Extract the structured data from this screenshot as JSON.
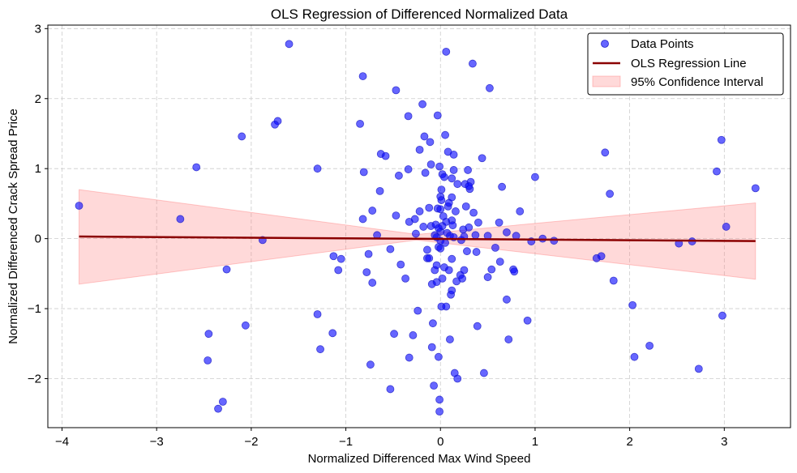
{
  "chart_data": {
    "type": "scatter",
    "title": "OLS Regression of Differenced Normalized Data",
    "xlabel": "Normalized Differenced Max Wind Speed",
    "ylabel": "Normalized Differenced Crack Spread Price",
    "xlim": [
      -4.15,
      3.7
    ],
    "ylim": [
      -2.7,
      3.05
    ],
    "xticks": [
      -4,
      -3,
      -2,
      -1,
      0,
      1,
      2,
      3
    ],
    "xtick_labels": [
      "−4",
      "−3",
      "−2",
      "−1",
      "0",
      "1",
      "2",
      "3"
    ],
    "yticks": [
      -2,
      -1,
      0,
      1,
      2,
      3
    ],
    "ytick_labels": [
      "−2",
      "−1",
      "0",
      "1",
      "2",
      "3"
    ],
    "grid": true,
    "legend_position": "top-right",
    "legend": [
      "Data Points",
      "OLS Regression Line",
      "95% Confidence Interval"
    ],
    "colors": {
      "points": "#0000ff",
      "points_edge": "#2020c8",
      "line": "#8b0000",
      "ci_fill": "#ff6666",
      "grid": "#cccccc"
    },
    "regression_line": {
      "x": [
        -3.82,
        3.33
      ],
      "y": [
        0.03,
        -0.035
      ]
    },
    "confidence_band": {
      "x": [
        -3.82,
        -0.25,
        3.33
      ],
      "lower": [
        -0.65,
        -0.02,
        -0.58
      ],
      "upper": [
        0.7,
        0.06,
        0.51
      ]
    },
    "points": [
      [
        -3.82,
        0.47
      ],
      [
        -2.75,
        0.28
      ],
      [
        -2.58,
        1.02
      ],
      [
        -2.45,
        -1.36
      ],
      [
        -2.46,
        -1.74
      ],
      [
        -2.35,
        -2.43
      ],
      [
        -2.3,
        -2.33
      ],
      [
        -2.26,
        -0.44
      ],
      [
        -2.1,
        1.46
      ],
      [
        -2.06,
        -1.24
      ],
      [
        -1.88,
        -0.02
      ],
      [
        -1.72,
        1.68
      ],
      [
        -1.75,
        1.63
      ],
      [
        -1.6,
        2.78
      ],
      [
        -1.3,
        1.0
      ],
      [
        -1.3,
        -1.08
      ],
      [
        -1.27,
        -1.58
      ],
      [
        -1.14,
        -1.35
      ],
      [
        -1.13,
        -0.25
      ],
      [
        -1.08,
        -0.45
      ],
      [
        -1.05,
        -0.29
      ],
      [
        -0.85,
        1.64
      ],
      [
        -0.82,
        2.32
      ],
      [
        -0.81,
        0.95
      ],
      [
        -0.82,
        0.28
      ],
      [
        -0.78,
        -0.48
      ],
      [
        -0.76,
        -0.22
      ],
      [
        -0.72,
        -0.63
      ],
      [
        -0.72,
        0.4
      ],
      [
        -0.74,
        -1.8
      ],
      [
        -0.67,
        0.05
      ],
      [
        -0.64,
        0.68
      ],
      [
        -0.63,
        1.21
      ],
      [
        -0.58,
        1.18
      ],
      [
        -0.53,
        -0.15
      ],
      [
        -0.53,
        -2.15
      ],
      [
        -0.49,
        -1.36
      ],
      [
        -0.47,
        2.12
      ],
      [
        -0.47,
        0.33
      ],
      [
        -0.44,
        0.9
      ],
      [
        -0.42,
        -0.37
      ],
      [
        -0.37,
        -0.57
      ],
      [
        -0.34,
        0.99
      ],
      [
        -0.33,
        0.24
      ],
      [
        -0.34,
        1.75
      ],
      [
        -0.33,
        -1.7
      ],
      [
        -0.29,
        -1.38
      ],
      [
        -0.27,
        0.28
      ],
      [
        -0.26,
        0.07
      ],
      [
        -0.24,
        -1.03
      ],
      [
        -0.22,
        1.27
      ],
      [
        -0.22,
        0.39
      ],
      [
        -0.19,
        1.92
      ],
      [
        -0.18,
        0.17
      ],
      [
        -0.17,
        1.46
      ],
      [
        -0.16,
        0.94
      ],
      [
        -0.14,
        -0.16
      ],
      [
        -0.14,
        -0.28
      ],
      [
        -0.12,
        -0.28
      ],
      [
        -0.12,
        0.44
      ],
      [
        -0.11,
        1.38
      ],
      [
        -0.1,
        0.18
      ],
      [
        -0.1,
        1.06
      ],
      [
        -0.09,
        -0.65
      ],
      [
        -0.09,
        -1.55
      ],
      [
        -0.08,
        -1.21
      ],
      [
        -0.07,
        -2.1
      ],
      [
        -0.06,
        0.05
      ],
      [
        -0.06,
        -0.45
      ],
      [
        -0.05,
        0.2
      ],
      [
        -0.04,
        0.02
      ],
      [
        -0.04,
        -0.62
      ],
      [
        -0.04,
        -0.38
      ],
      [
        -0.03,
        0.43
      ],
      [
        -0.03,
        1.76
      ],
      [
        -0.02,
        -1.69
      ],
      [
        -0.02,
        -0.12
      ],
      [
        -0.01,
        -2.3
      ],
      [
        -0.01,
        1.03
      ],
      [
        0.0,
        0.42
      ],
      [
        0.0,
        0.6
      ],
      [
        0.0,
        -0.14
      ],
      [
        0.0,
        -0.03
      ],
      [
        0.0,
        0.1
      ],
      [
        0.01,
        0.55
      ],
      [
        0.01,
        -0.97
      ],
      [
        0.01,
        0.7
      ],
      [
        0.02,
        -0.57
      ],
      [
        0.02,
        0.18
      ],
      [
        0.02,
        0.92
      ],
      [
        0.03,
        0.32
      ],
      [
        0.04,
        -0.41
      ],
      [
        0.04,
        0.88
      ],
      [
        0.05,
        -0.06
      ],
      [
        0.05,
        1.48
      ],
      [
        0.06,
        0.24
      ],
      [
        0.06,
        -0.97
      ],
      [
        0.07,
        0.08
      ],
      [
        0.08,
        1.24
      ],
      [
        0.08,
        0.46
      ],
      [
        0.09,
        0.51
      ],
      [
        0.09,
        -0.45
      ],
      [
        0.1,
        0.04
      ],
      [
        0.1,
        -1.44
      ],
      [
        0.11,
        -0.8
      ],
      [
        0.12,
        -0.74
      ],
      [
        0.12,
        0.86
      ],
      [
        0.12,
        0.26
      ],
      [
        0.12,
        0.59
      ],
      [
        0.12,
        -0.29
      ],
      [
        0.13,
        0.19
      ],
      [
        0.14,
        1.2
      ],
      [
        0.14,
        0.98
      ],
      [
        0.14,
        0.02
      ],
      [
        0.15,
        -1.92
      ],
      [
        0.16,
        0.39
      ],
      [
        0.17,
        -0.61
      ],
      [
        0.18,
        0.78
      ],
      [
        0.18,
        -2.0
      ],
      [
        0.21,
        -0.52
      ],
      [
        0.22,
        -0.02
      ],
      [
        0.23,
        -0.57
      ],
      [
        0.24,
        0.13
      ],
      [
        0.25,
        0.03
      ],
      [
        0.25,
        -0.45
      ],
      [
        0.26,
        0.78
      ],
      [
        0.27,
        0.46
      ],
      [
        0.28,
        -0.18
      ],
      [
        0.29,
        0.98
      ],
      [
        0.3,
        0.16
      ],
      [
        0.31,
        0.71
      ],
      [
        0.32,
        0.81
      ],
      [
        0.34,
        2.5
      ],
      [
        0.35,
        0.37
      ],
      [
        0.37,
        0.05
      ],
      [
        0.38,
        -0.19
      ],
      [
        0.39,
        -1.25
      ],
      [
        0.4,
        0.23
      ],
      [
        0.44,
        1.15
      ],
      [
        0.46,
        -1.92
      ],
      [
        0.5,
        0.04
      ],
      [
        0.5,
        -0.55
      ],
      [
        0.52,
        2.15
      ],
      [
        0.54,
        -0.44
      ],
      [
        0.58,
        -0.13
      ],
      [
        0.62,
        0.23
      ],
      [
        0.63,
        -0.33
      ],
      [
        0.65,
        0.74
      ],
      [
        0.7,
        0.09
      ],
      [
        0.7,
        -0.87
      ],
      [
        0.72,
        -1.44
      ],
      [
        0.77,
        -0.44
      ],
      [
        0.78,
        -0.47
      ],
      [
        0.8,
        0.04
      ],
      [
        0.84,
        0.39
      ],
      [
        0.92,
        -1.17
      ],
      [
        0.96,
        -0.04
      ],
      [
        1.0,
        0.88
      ],
      [
        1.08,
        0.0
      ],
      [
        1.2,
        -0.03
      ],
      [
        1.65,
        -0.28
      ],
      [
        1.7,
        -0.25
      ],
      [
        1.74,
        1.23
      ],
      [
        1.79,
        0.64
      ],
      [
        1.83,
        -0.6
      ],
      [
        2.03,
        -0.95
      ],
      [
        2.05,
        -1.69
      ],
      [
        2.21,
        -1.53
      ],
      [
        2.52,
        -0.07
      ],
      [
        2.66,
        -0.04
      ],
      [
        2.73,
        -1.86
      ],
      [
        2.92,
        0.96
      ],
      [
        2.97,
        1.41
      ],
      [
        2.98,
        -1.1
      ],
      [
        3.02,
        0.17
      ],
      [
        3.33,
        0.72
      ],
      [
        -0.02,
        0.15
      ],
      [
        0.06,
        2.67
      ],
      [
        -0.01,
        -2.47
      ],
      [
        0.3,
        0.75
      ]
    ]
  }
}
